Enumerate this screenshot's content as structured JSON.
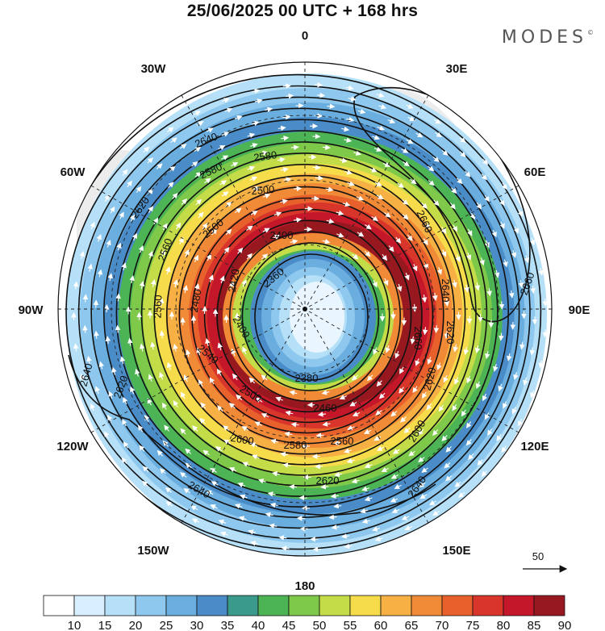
{
  "header": {
    "title": "25/06/2025  00 UTC  + 168 hrs",
    "brand": "MODES",
    "brand_mark": "©"
  },
  "map": {
    "projection": "south polar stereographic",
    "longitude_labels": [
      "0",
      "30E",
      "60E",
      "90E",
      "120E",
      "150E",
      "180",
      "150W",
      "120W",
      "90W",
      "60W",
      "30W"
    ],
    "contour_labels": [
      "2640",
      "2580",
      "2620",
      "2580",
      "2500",
      "2500",
      "2560",
      "2400",
      "2360",
      "2420",
      "2480",
      "2560",
      "2400",
      "2640",
      "2620",
      "2540",
      "2380",
      "2500",
      "2460",
      "2600",
      "2580",
      "2560",
      "2620",
      "2640",
      "2660",
      "2660",
      "2640",
      "2660",
      "2620",
      "2600",
      "2640",
      "2620"
    ],
    "reference_vector_label": "50"
  },
  "colorbar": {
    "tick_labels": [
      "10",
      "15",
      "20",
      "25",
      "30",
      "35",
      "40",
      "45",
      "50",
      "55",
      "60",
      "65",
      "70",
      "75",
      "80",
      "85",
      "90"
    ],
    "colors": [
      "#ffffff",
      "#d7efff",
      "#b5e0f8",
      "#8fc8ee",
      "#6aaedf",
      "#4a8cc8",
      "#3a9a8c",
      "#4cb454",
      "#7ec84a",
      "#c4dc48",
      "#f6dc4a",
      "#f6b044",
      "#f08a36",
      "#e8602c",
      "#d8362a",
      "#c4182a",
      "#981820"
    ]
  }
}
